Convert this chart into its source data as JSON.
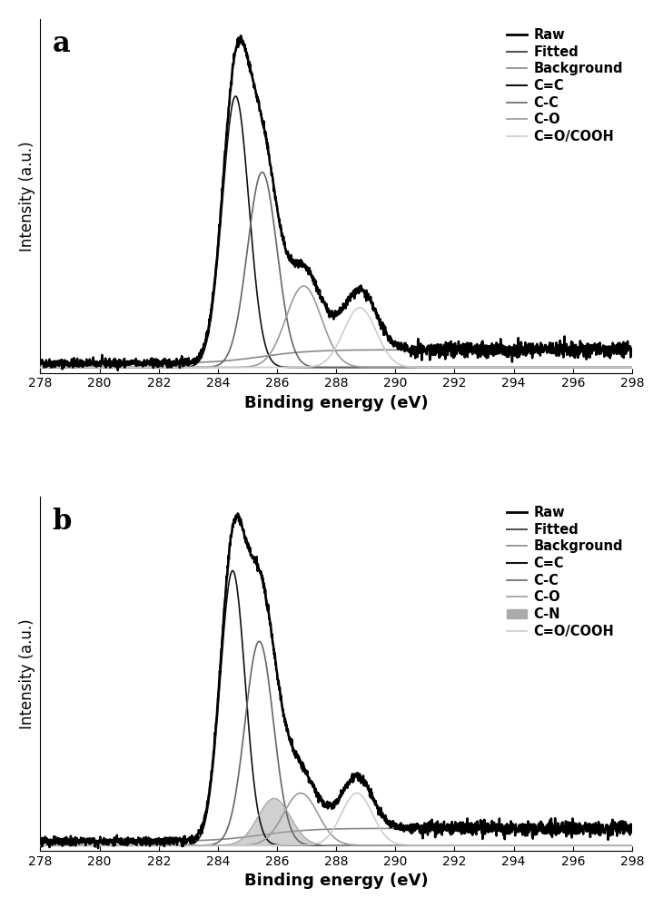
{
  "x_min": 278,
  "x_max": 298,
  "x_ticks": [
    278,
    280,
    282,
    284,
    286,
    288,
    290,
    292,
    294,
    296,
    298
  ],
  "xlabel": "Binding energy (eV)",
  "ylabel": "Intensity (a.u.)",
  "panel_labels": [
    "a",
    "b"
  ],
  "colors": {
    "raw": "#000000",
    "fitted": "#555555",
    "background": "#888888",
    "cec": "#111111",
    "cc": "#666666",
    "co": "#999999",
    "cn": "#aaaaaa",
    "ccooh": "#cccccc"
  },
  "legend_a": [
    "Raw",
    "Fitted",
    "Background",
    "C=C",
    "C-C",
    "C-O",
    "C=O/COOH"
  ],
  "legend_b": [
    "Raw",
    "Fitted",
    "Background",
    "C=C",
    "C-C",
    "C-O",
    "C-N",
    "C=O/COOH"
  ]
}
